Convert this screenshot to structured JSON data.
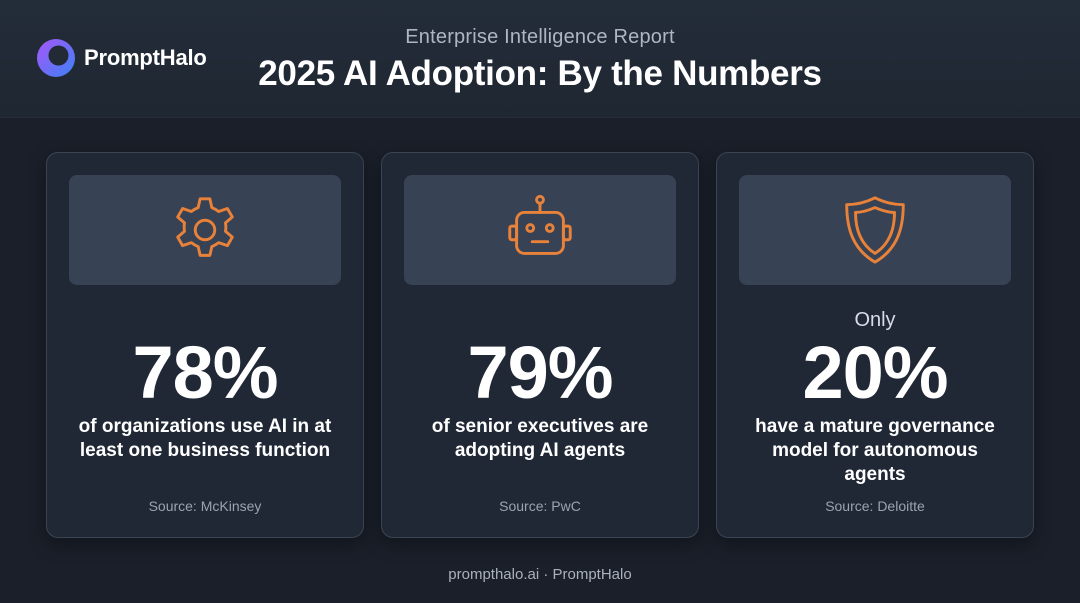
{
  "brand": {
    "name": "PromptHalo",
    "logo_icon": "halo-ring-icon",
    "gradient_start": "#8b5cf6",
    "gradient_end": "#3b82f6"
  },
  "header": {
    "subtitle": "Enterprise Intelligence Report",
    "title": "2025 AI Adoption: By the Numbers"
  },
  "accent_color": "#e8823a",
  "cards": [
    {
      "icon": "gear-icon",
      "prefix": "",
      "stat": "78%",
      "stat_value": 78,
      "description": "of organizations use AI in at least one business function",
      "source": "Source: McKinsey"
    },
    {
      "icon": "robot-icon",
      "prefix": "",
      "stat": "79%",
      "stat_value": 79,
      "description": "of senior executives are adopting AI agents",
      "source": "Source: PwC"
    },
    {
      "icon": "shield-icon",
      "prefix": "Only",
      "stat": "20%",
      "stat_value": 20,
      "description": "have a mature governance model for autonomous agents",
      "source": "Source: Deloitte"
    }
  ],
  "footer": {
    "text": "prompthalo.ai · PromptHalo"
  }
}
